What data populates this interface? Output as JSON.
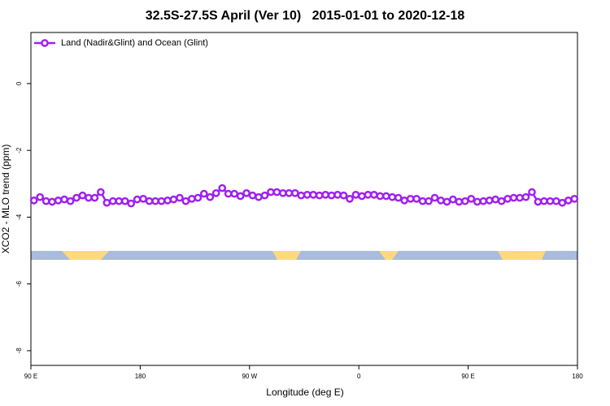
{
  "chart_data": {
    "type": "line",
    "title": "32.5S-27.5S April (Ver 10)   2015-01-01 to 2020-12-18",
    "x_label": "Longitude (deg E)",
    "y_label": "XCO2 - MLO trend (ppm)",
    "xlim": [
      90,
      540
    ],
    "ylim": [
      -8.44,
      1.53
    ],
    "xticks": [
      {
        "value": 90,
        "label": "90 E"
      },
      180,
      {
        "value": 270,
        "label": "90 W"
      },
      {
        "value": 360,
        "label": "0"
      },
      {
        "value": 450,
        "label": "90 E"
      },
      180
    ],
    "yticks": [
      0,
      -2,
      -4,
      -6,
      -8
    ],
    "legend": "top-left",
    "series": [
      {
        "name": "Land (Nadir&Glint) and Ocean (Glint)",
        "color": "#a020f0",
        "x": [
          92.5,
          97.5,
          102.5,
          107.5,
          112.5,
          117.5,
          122.5,
          127.5,
          132.5,
          137.5,
          142.5,
          147.5,
          152.5,
          157.5,
          162.5,
          167.5,
          172.5,
          177.5,
          182.5,
          187.5,
          192.5,
          197.5,
          202.5,
          207.5,
          212.5,
          217.5,
          222.5,
          227.5,
          232.5,
          237.5,
          242.5,
          247.5,
          252.5,
          257.5,
          262.5,
          267.5,
          272.5,
          277.5,
          282.5,
          287.5,
          292.5,
          297.5,
          302.5,
          307.5,
          312.5,
          317.5,
          322.5,
          327.5,
          332.5,
          337.5,
          342.5,
          347.5,
          352.5,
          357.5,
          362.5,
          367.5,
          372.5,
          377.5,
          382.5,
          387.5,
          392.5,
          397.5,
          402.5,
          407.5,
          412.5,
          417.5,
          422.5,
          427.5,
          432.5,
          437.5,
          442.5,
          447.5,
          452.5,
          457.5,
          462.5,
          467.5,
          472.5,
          477.5,
          482.5,
          487.5,
          492.5,
          497.5,
          502.5,
          507.5,
          512.5,
          517.5,
          522.5,
          527.5,
          532.5,
          537.5
        ],
        "values": [
          -3.5,
          -3.4,
          -3.52,
          -3.54,
          -3.5,
          -3.47,
          -3.52,
          -3.42,
          -3.35,
          -3.42,
          -3.42,
          -3.25,
          -3.57,
          -3.52,
          -3.52,
          -3.52,
          -3.59,
          -3.47,
          -3.45,
          -3.52,
          -3.52,
          -3.52,
          -3.5,
          -3.47,
          -3.42,
          -3.52,
          -3.45,
          -3.42,
          -3.3,
          -3.4,
          -3.28,
          -3.13,
          -3.3,
          -3.3,
          -3.37,
          -3.28,
          -3.35,
          -3.4,
          -3.35,
          -3.25,
          -3.25,
          -3.28,
          -3.28,
          -3.28,
          -3.35,
          -3.33,
          -3.33,
          -3.35,
          -3.33,
          -3.35,
          -3.33,
          -3.35,
          -3.45,
          -3.33,
          -3.37,
          -3.33,
          -3.33,
          -3.37,
          -3.37,
          -3.4,
          -3.42,
          -3.5,
          -3.45,
          -3.45,
          -3.52,
          -3.52,
          -3.42,
          -3.5,
          -3.54,
          -3.47,
          -3.54,
          -3.52,
          -3.45,
          -3.54,
          -3.52,
          -3.5,
          -3.47,
          -3.52,
          -3.45,
          -3.42,
          -3.42,
          -3.4,
          -3.25,
          -3.54,
          -3.52,
          -3.52,
          -3.52,
          -3.57,
          -3.5,
          -3.45
        ]
      }
    ]
  }
}
